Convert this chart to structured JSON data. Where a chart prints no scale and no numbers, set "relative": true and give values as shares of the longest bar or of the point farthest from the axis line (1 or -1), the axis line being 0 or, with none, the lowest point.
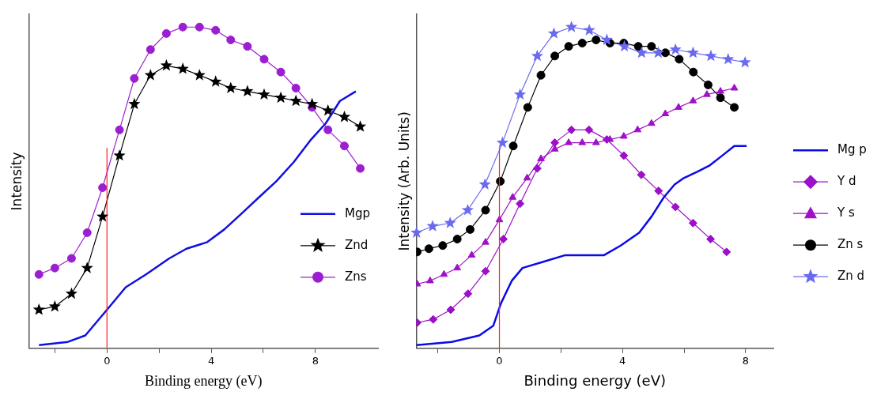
{
  "chart_data": [
    {
      "type": "line",
      "xlabel": "Binding energy (eV)",
      "ylabel": "Intensity",
      "relative": true,
      "xlim": [
        -3,
        10.4
      ],
      "xticks": [
        {
          "value": -2,
          "label": null
        },
        0,
        {
          "value": 2,
          "label": null
        },
        4,
        {
          "value": 6,
          "label": null
        },
        8
      ],
      "legend": "bottom right",
      "grid": false,
      "ref_lines": [
        {
          "axis": "x",
          "value": 0,
          "color": "#ff2020"
        }
      ],
      "series": [
        {
          "name": "Mgp",
          "color": "#1010e0",
          "marker": "none",
          "x": [
            -2.61,
            -1.5,
            -0.83,
            0,
            0.72,
            1.5,
            2.39,
            3.05,
            3.83,
            4.5,
            5.17,
            5.83,
            6.5,
            7.17,
            7.83,
            8.39,
            8.94,
            9.55
          ],
          "values": [
            0.01,
            0.02,
            0.04,
            0.12,
            0.19,
            0.23,
            0.28,
            0.31,
            0.33,
            0.37,
            0.42,
            0.47,
            0.52,
            0.58,
            0.65,
            0.7,
            0.77,
            0.8
          ]
        },
        {
          "name": "Znd",
          "color": "#000000",
          "marker": "star",
          "x": [
            -2.61,
            -2.0,
            -1.36,
            -0.76,
            -0.17,
            0.48,
            1.05,
            1.67,
            2.28,
            2.91,
            3.55,
            4.17,
            4.75,
            5.39,
            6.03,
            6.67,
            7.25,
            7.87,
            8.48,
            9.11,
            9.72
          ],
          "values": [
            0.12,
            0.13,
            0.17,
            0.25,
            0.41,
            0.6,
            0.76,
            0.85,
            0.88,
            0.87,
            0.85,
            0.83,
            0.81,
            0.8,
            0.79,
            0.78,
            0.77,
            0.76,
            0.74,
            0.72,
            0.69
          ]
        },
        {
          "name": "Zns",
          "color": "#9b1fd0",
          "marker": "circle",
          "x": [
            -2.61,
            -2.0,
            -1.36,
            -0.76,
            -0.17,
            0.48,
            1.05,
            1.67,
            2.28,
            2.91,
            3.55,
            4.17,
            4.75,
            5.39,
            6.03,
            6.67,
            7.25,
            7.87,
            8.48,
            9.11,
            9.72
          ],
          "values": [
            0.23,
            0.25,
            0.28,
            0.36,
            0.5,
            0.68,
            0.84,
            0.93,
            0.98,
            1.0,
            1.0,
            0.99,
            0.96,
            0.94,
            0.9,
            0.86,
            0.81,
            0.75,
            0.68,
            0.63,
            0.56
          ]
        }
      ]
    },
    {
      "type": "line",
      "xlabel": "Binding energy (eV)",
      "ylabel": "Intensity (Arb. Units)",
      "relative": true,
      "xlim": [
        -2.7,
        8.9
      ],
      "xticks": [
        {
          "value": -2,
          "label": null
        },
        0,
        {
          "value": 2,
          "label": null
        },
        4,
        {
          "value": 6,
          "label": null
        },
        8
      ],
      "legend": "right",
      "grid": false,
      "ref_lines": [
        {
          "axis": "x",
          "value": 0,
          "color": "#ff2020"
        }
      ],
      "series": [
        {
          "name": "Mg p",
          "color": "#0a0ae8",
          "marker": "none",
          "x": [
            -2.69,
            -1.55,
            -0.65,
            -0.2,
            0.05,
            0.4,
            0.75,
            1.45,
            2.14,
            2.54,
            3.4,
            3.94,
            4.54,
            4.94,
            5.34,
            5.69,
            5.99,
            6.44,
            6.84,
            7.24,
            7.63,
            8.03
          ],
          "values": [
            0.01,
            0.02,
            0.04,
            0.07,
            0.14,
            0.21,
            0.25,
            0.27,
            0.29,
            0.29,
            0.29,
            0.32,
            0.36,
            0.41,
            0.47,
            0.51,
            0.53,
            0.55,
            0.57,
            0.6,
            0.63,
            0.63
          ]
        },
        {
          "name": "Y d",
          "color": "#9b10c8",
          "marker": "diamond",
          "x": [
            -2.67,
            -2.15,
            -1.58,
            -1.02,
            -0.45,
            0.13,
            0.67,
            1.23,
            1.8,
            2.34,
            2.91,
            3.49,
            4.04,
            4.61,
            5.17,
            5.72,
            6.29,
            6.86,
            7.38
          ],
          "values": [
            0.08,
            0.09,
            0.12,
            0.17,
            0.24,
            0.34,
            0.45,
            0.56,
            0.64,
            0.68,
            0.68,
            0.65,
            0.6,
            0.54,
            0.49,
            0.44,
            0.39,
            0.34,
            0.3
          ]
        },
        {
          "name": "Y s",
          "color": "#a010c8",
          "marker": "triangle",
          "x": [
            -2.67,
            -2.25,
            -1.8,
            -1.37,
            -0.9,
            -0.45,
            0,
            0.43,
            0.9,
            1.35,
            1.8,
            2.25,
            2.69,
            3.14,
            3.59,
            4.04,
            4.49,
            4.94,
            5.39,
            5.82,
            6.29,
            6.74,
            7.18,
            7.63
          ],
          "values": [
            0.2,
            0.21,
            0.23,
            0.25,
            0.29,
            0.33,
            0.4,
            0.47,
            0.53,
            0.59,
            0.62,
            0.64,
            0.64,
            0.64,
            0.65,
            0.66,
            0.68,
            0.7,
            0.73,
            0.75,
            0.77,
            0.79,
            0.8,
            0.81
          ]
        },
        {
          "name": "Zn s",
          "color": "#000000",
          "marker": "circle",
          "x": [
            -2.67,
            -2.29,
            -1.84,
            -1.37,
            -0.95,
            -0.45,
            0.03,
            0.45,
            0.92,
            1.35,
            1.8,
            2.25,
            2.69,
            3.14,
            3.59,
            4.04,
            4.51,
            4.94,
            5.39,
            5.84,
            6.3,
            6.78,
            7.18,
            7.63
          ],
          "values": [
            0.3,
            0.31,
            0.32,
            0.34,
            0.37,
            0.43,
            0.52,
            0.63,
            0.75,
            0.85,
            0.91,
            0.94,
            0.95,
            0.96,
            0.95,
            0.95,
            0.94,
            0.94,
            0.92,
            0.9,
            0.86,
            0.82,
            0.78,
            0.75
          ]
        },
        {
          "name": "Zn d",
          "color": "#6a6af0",
          "marker": "star",
          "x": [
            -2.69,
            -2.17,
            -1.6,
            -1.03,
            -0.47,
            0.1,
            0.67,
            1.23,
            1.77,
            2.34,
            2.92,
            3.49,
            4.06,
            4.62,
            5.16,
            5.72,
            6.29,
            6.87,
            7.43,
            7.98
          ],
          "values": [
            0.36,
            0.38,
            0.39,
            0.43,
            0.51,
            0.64,
            0.79,
            0.91,
            0.98,
            1.0,
            0.99,
            0.96,
            0.94,
            0.92,
            0.92,
            0.93,
            0.92,
            0.91,
            0.9,
            0.89
          ]
        }
      ]
    }
  ]
}
